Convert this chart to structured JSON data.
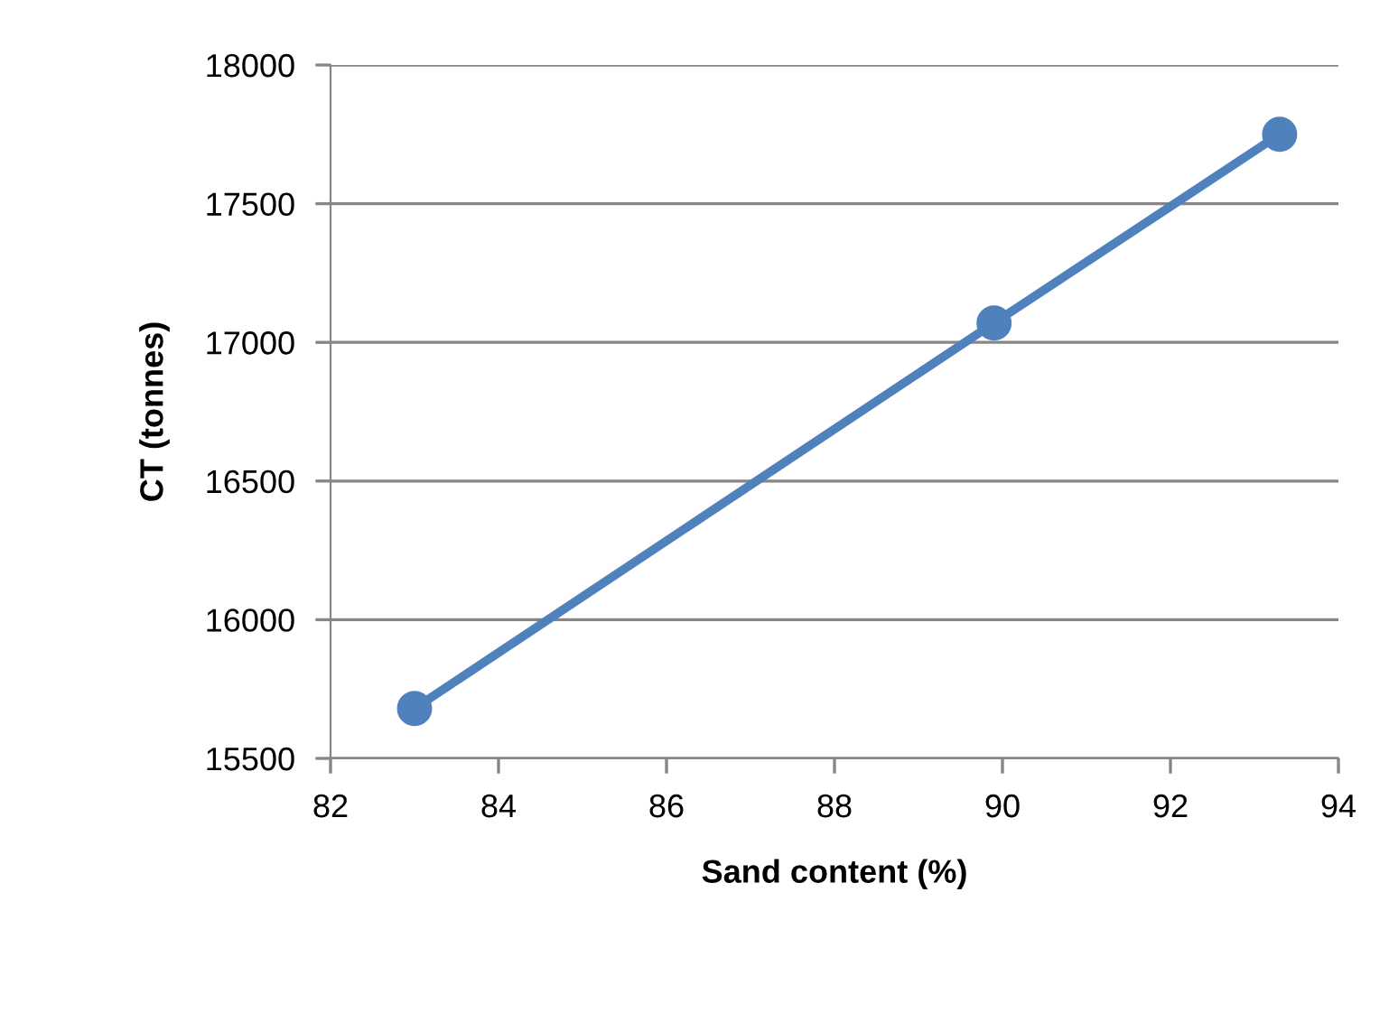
{
  "chart_data": {
    "type": "line",
    "xlabel": "Sand content (%)",
    "ylabel": "CT (tonnes)",
    "x": [
      83.0,
      89.9,
      93.3
    ],
    "series": [
      {
        "color": "#4f81bd",
        "values": [
          15680,
          17070,
          17750
        ]
      }
    ],
    "xlim": [
      82,
      94
    ],
    "xticks": [
      82,
      84,
      86,
      88,
      90,
      92,
      94
    ],
    "ylim": [
      15500,
      18000
    ],
    "yticks": [
      15500,
      16000,
      16500,
      17000,
      17500,
      18000
    ],
    "grid": "y",
    "marker": "circle",
    "line_style": "solid",
    "legend": false
  }
}
